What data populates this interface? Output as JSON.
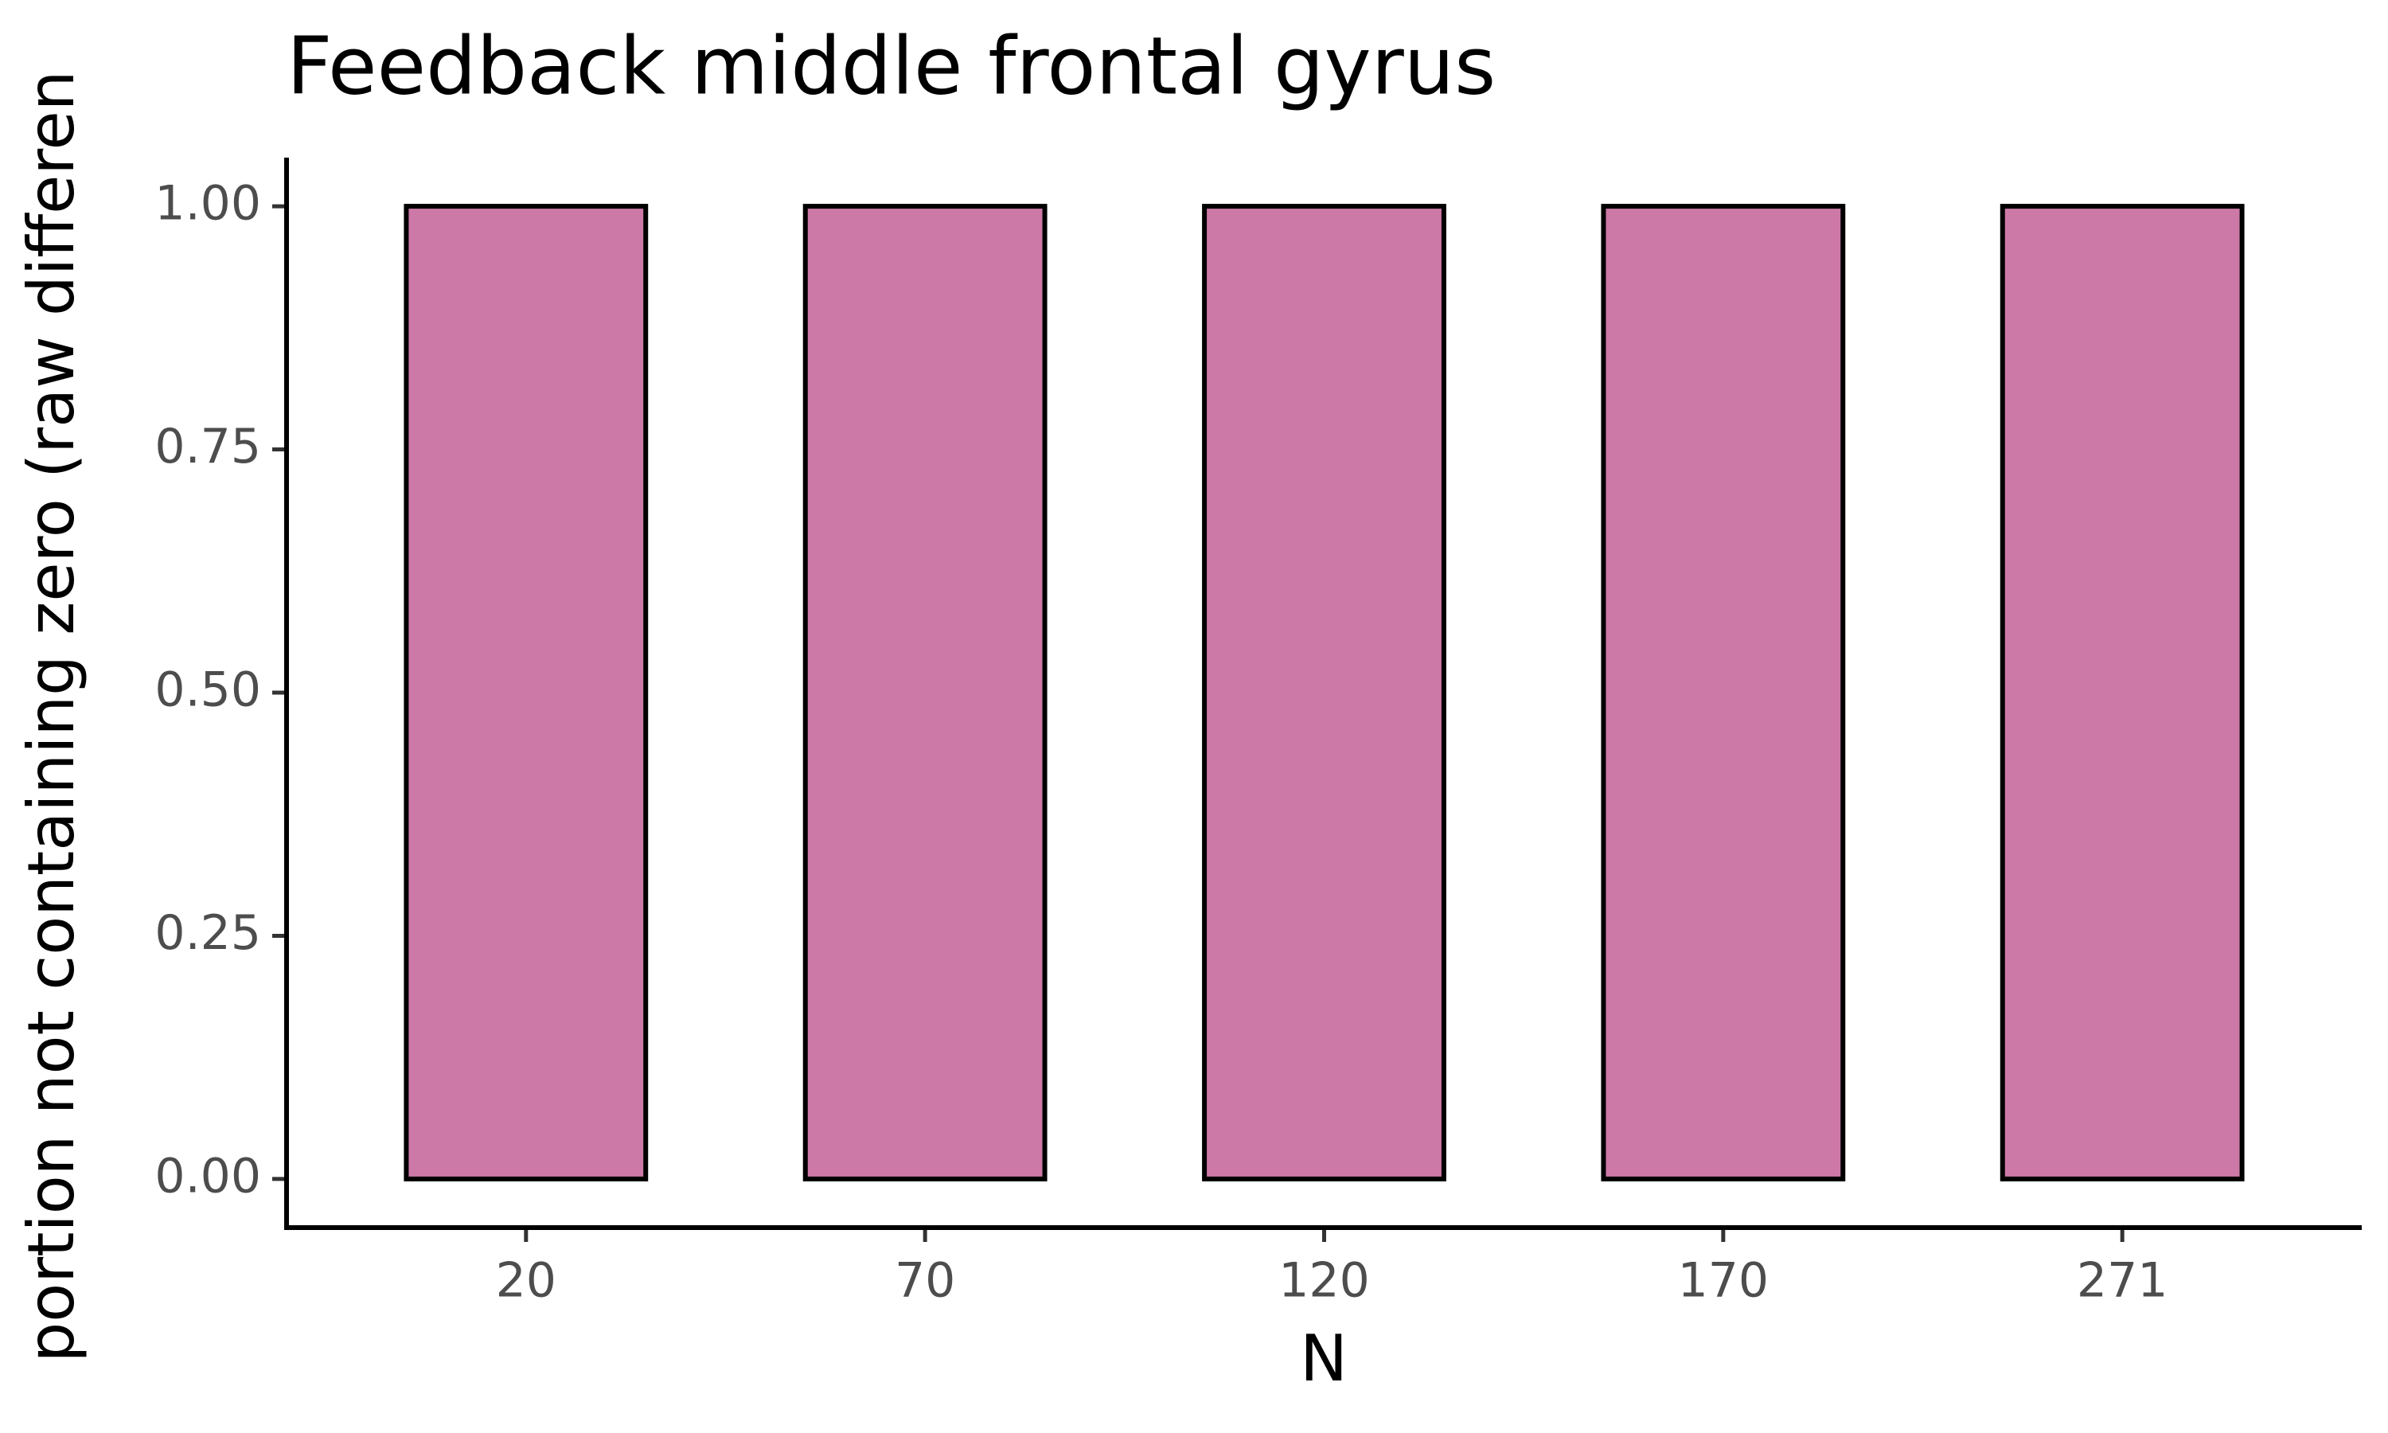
{
  "chart_data": {
    "type": "bar",
    "title": "Feedback middle frontal gyrus",
    "x_label": "N",
    "y_label": "portion not containing zero (raw differen",
    "categories": [
      "20",
      "70",
      "120",
      "170",
      "271"
    ],
    "values": [
      1,
      1,
      1,
      1,
      1
    ],
    "color": "#cc79a7",
    "ylim": [
      -0.05,
      1.05
    ],
    "yticks": [
      {
        "value": 0,
        "label": "0.00"
      },
      {
        "value": 0.25,
        "label": "0.25"
      },
      {
        "value": 0.5,
        "label": "0.50"
      },
      {
        "value": 0.75,
        "label": "0.75"
      },
      {
        "value": 1,
        "label": "1.00"
      }
    ],
    "grid": false
  }
}
